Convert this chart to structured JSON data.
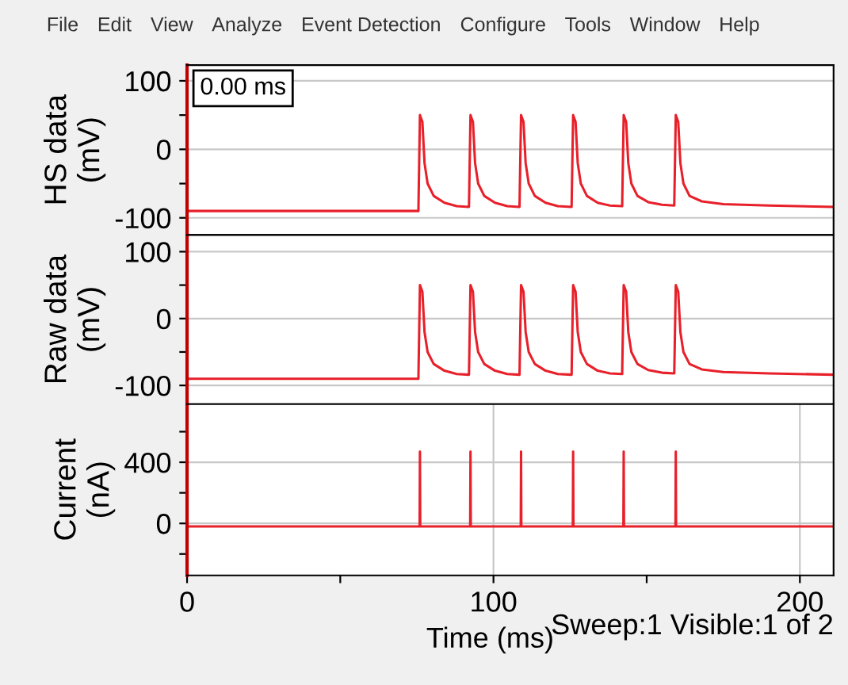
{
  "chart_data": [
    {
      "type": "line",
      "ylabel": "HS data\n(mV)",
      "annotations": [
        "File",
        "Edit",
        "View",
        "Analyze",
        "Event Detection",
        "Configure",
        "Tools",
        "Window",
        "Help",
        "0.00 ms"
      ],
      "xlim": [
        0,
        211
      ],
      "ylim": [
        -125,
        123
      ],
      "yticks": [
        -100,
        {
          "value": -50,
          "label": null
        },
        0,
        {
          "value": 50,
          "label": null
        },
        100
      ],
      "grid": true,
      "tick_labels": "y",
      "series": [
        {
          "color": "#e8202a",
          "x": [
            0,
            75.5,
            76,
            76.8,
            77.5,
            78.5,
            80.5,
            84,
            88,
            92,
            92.5,
            93.3,
            94,
            95,
            97,
            100.5,
            104.5,
            108.5,
            109,
            109.8,
            110.5,
            111.5,
            113.5,
            117,
            121,
            125.5,
            126,
            126.8,
            127.5,
            128.5,
            130.5,
            134,
            138,
            142,
            142.5,
            143.3,
            144,
            145,
            147,
            150.5,
            155,
            159,
            159.5,
            160.3,
            161,
            162,
            164,
            168,
            175,
            190,
            211
          ],
          "values": [
            -90,
            -90,
            50,
            40,
            -20,
            -50,
            -68,
            -78,
            -83,
            -84,
            50,
            40,
            -20,
            -50,
            -68,
            -78,
            -83,
            -84,
            50,
            40,
            -20,
            -50,
            -68,
            -78,
            -83,
            -84,
            50,
            40,
            -20,
            -50,
            -68,
            -78,
            -82,
            -83,
            50,
            40,
            -20,
            -50,
            -68,
            -77,
            -81,
            -82,
            50,
            40,
            -20,
            -50,
            -68,
            -76,
            -80,
            -82,
            -84
          ]
        }
      ]
    },
    {
      "type": "line",
      "ylabel": "Raw data\n(mV)",
      "xlim": [
        0,
        211
      ],
      "ylim": [
        -128,
        125
      ],
      "yticks": [
        -100,
        {
          "value": -50,
          "label": null
        },
        0,
        {
          "value": 50,
          "label": null
        },
        100
      ],
      "grid": true,
      "tick_labels": "y",
      "series": [
        {
          "color": "#e8202a",
          "x": [
            0,
            75.5,
            76,
            76.8,
            77.5,
            78.5,
            80.5,
            84,
            88,
            92,
            92.5,
            93.3,
            94,
            95,
            97,
            100.5,
            104.5,
            108.5,
            109,
            109.8,
            110.5,
            111.5,
            113.5,
            117,
            121,
            125.5,
            126,
            126.8,
            127.5,
            128.5,
            130.5,
            134,
            138,
            142,
            142.5,
            143.3,
            144,
            145,
            147,
            150.5,
            155,
            159,
            159.5,
            160.3,
            161,
            162,
            164,
            168,
            175,
            190,
            211
          ],
          "values": [
            -90,
            -90,
            50,
            40,
            -20,
            -50,
            -68,
            -78,
            -83,
            -84,
            50,
            40,
            -20,
            -50,
            -68,
            -78,
            -83,
            -84,
            50,
            40,
            -20,
            -50,
            -68,
            -78,
            -83,
            -84,
            50,
            40,
            -20,
            -50,
            -68,
            -78,
            -82,
            -83,
            50,
            40,
            -20,
            -50,
            -68,
            -77,
            -81,
            -82,
            50,
            40,
            -20,
            -50,
            -68,
            -76,
            -80,
            -82,
            -84
          ]
        }
      ]
    },
    {
      "type": "line",
      "ylabel": "Current\n(nA)",
      "xlabel": "Time (ms)",
      "annotations": [
        "Sweep:1 Visible:1 of 2"
      ],
      "xlim": [
        0,
        211
      ],
      "ylim": [
        -340,
        780
      ],
      "yticks": [
        {
          "value": -200,
          "label": null
        },
        0,
        {
          "value": 200,
          "label": null
        },
        400,
        {
          "value": 600,
          "label": null
        }
      ],
      "xticks": [
        0,
        {
          "value": 50,
          "label": null
        },
        100,
        {
          "value": 150,
          "label": null
        },
        200
      ],
      "grid": true,
      "series": [
        {
          "color": "#e8202a",
          "x": [
            0,
            75.9,
            76,
            76.1,
            92.4,
            92.5,
            92.6,
            108.9,
            109,
            109.1,
            125.9,
            126,
            126.1,
            142.4,
            142.5,
            142.6,
            159.4,
            159.5,
            159.6,
            211
          ],
          "values": [
            -20,
            -20,
            470,
            -20,
            -20,
            470,
            -20,
            -20,
            470,
            -20,
            -20,
            470,
            -20,
            -20,
            470,
            -20,
            -20,
            470,
            -20,
            -20
          ]
        }
      ]
    }
  ]
}
